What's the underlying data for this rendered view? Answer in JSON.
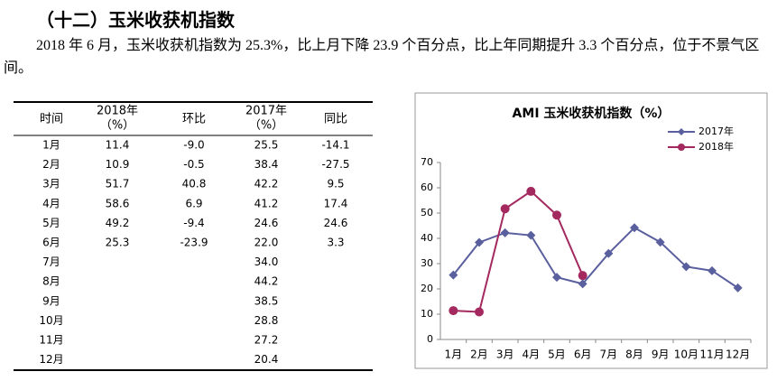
{
  "heading": "（十二）玉米收获机指数",
  "paragraph": "2018 年 6 月，玉米收获机指数为 25.3%，比上月下降 23.9 个百分点，比上年同期提升 3.3 个百分点，位于不景气区间。",
  "table": {
    "headers": [
      [
        "时间"
      ],
      [
        "2018年",
        "（%）"
      ],
      [
        "环比"
      ],
      [
        "2017年",
        "（%）"
      ],
      [
        "同比"
      ]
    ],
    "rows": [
      {
        "time": "1月",
        "y2018": "11.4",
        "mom": "-9.0",
        "y2017": "25.5",
        "yoy": "-14.1"
      },
      {
        "time": "2月",
        "y2018": "10.9",
        "mom": "-0.5",
        "y2017": "38.4",
        "yoy": "-27.5"
      },
      {
        "time": "3月",
        "y2018": "51.7",
        "mom": "40.8",
        "y2017": "42.2",
        "yoy": "9.5"
      },
      {
        "time": "4月",
        "y2018": "58.6",
        "mom": "6.9",
        "y2017": "41.2",
        "yoy": "17.4"
      },
      {
        "time": "5月",
        "y2018": "49.2",
        "mom": "-9.4",
        "y2017": "24.6",
        "yoy": "24.6"
      },
      {
        "time": "6月",
        "y2018": "25.3",
        "mom": "-23.9",
        "y2017": "22.0",
        "yoy": "3.3"
      },
      {
        "time": "7月",
        "y2017": "34.0"
      },
      {
        "time": "8月",
        "y2017": "44.2"
      },
      {
        "time": "9月",
        "y2017": "38.5"
      },
      {
        "time": "10月",
        "y2017": "28.8"
      },
      {
        "time": "11月",
        "y2017": "27.2"
      },
      {
        "time": "12月",
        "y2017": "20.4"
      }
    ]
  },
  "chart_data": {
    "type": "line",
    "title": "AMI 玉米收获机指数（%）",
    "categories": [
      "1月",
      "2月",
      "3月",
      "4月",
      "5月",
      "6月",
      "7月",
      "8月",
      "9月",
      "10月",
      "11月",
      "12月"
    ],
    "series": [
      {
        "name": "2017年",
        "color": "#5a5f9e",
        "marker": "diamond",
        "values": [
          25.5,
          38.4,
          42.2,
          41.2,
          24.6,
          22.0,
          34.0,
          44.2,
          38.5,
          28.8,
          27.2,
          20.4
        ]
      },
      {
        "name": "2018年",
        "color": "#a3295e",
        "marker": "circle",
        "values": [
          11.4,
          10.9,
          51.7,
          58.6,
          49.2,
          25.3,
          null,
          null,
          null,
          null,
          null,
          null
        ]
      }
    ],
    "ylim": [
      0,
      70
    ],
    "yticks": [
      0,
      10,
      20,
      30,
      40,
      50,
      60,
      70
    ],
    "grid": false,
    "legend": "top-right"
  }
}
